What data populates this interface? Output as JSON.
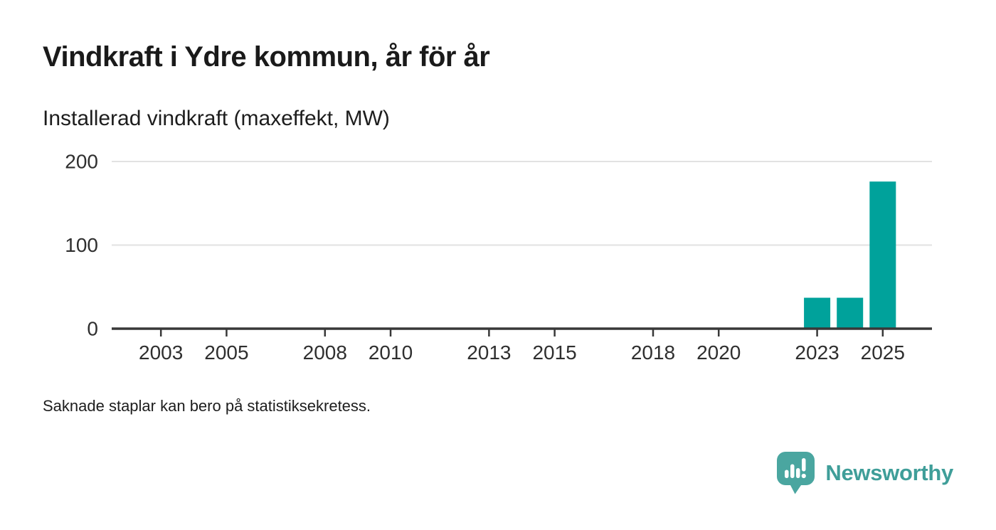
{
  "branding": {
    "name": "Newsworthy",
    "icon": "newsworthy-speech-bubble-bar-chart-icon",
    "icon_color": "#4aa6a0",
    "text_color": "#3f9e99"
  },
  "chart_data": {
    "type": "bar",
    "title": "Vindkraft i Ydre kommun, år för år",
    "subtitle": "Installerad vindkraft (maxeffekt, MW)",
    "note": "Saknade staplar kan bero på statistiksekretess.",
    "xlabel": "",
    "ylabel": "maxeffekt, MW",
    "x": [
      2023,
      2024,
      2025
    ],
    "values": [
      37,
      37,
      176
    ],
    "xlim": [
      2001.5,
      2026.5
    ],
    "ylim": [
      0,
      200
    ],
    "yticks": [
      0,
      100,
      200
    ],
    "xticks": [
      2003,
      2005,
      2008,
      2010,
      2013,
      2015,
      2018,
      2020,
      2023,
      2025
    ],
    "grid": "horizontal",
    "legend": "none",
    "bar_color": "#00a29b",
    "grid_color": "#e2e2e2",
    "axis_color": "#383838",
    "tick_label_color": "#2f2f2f"
  }
}
